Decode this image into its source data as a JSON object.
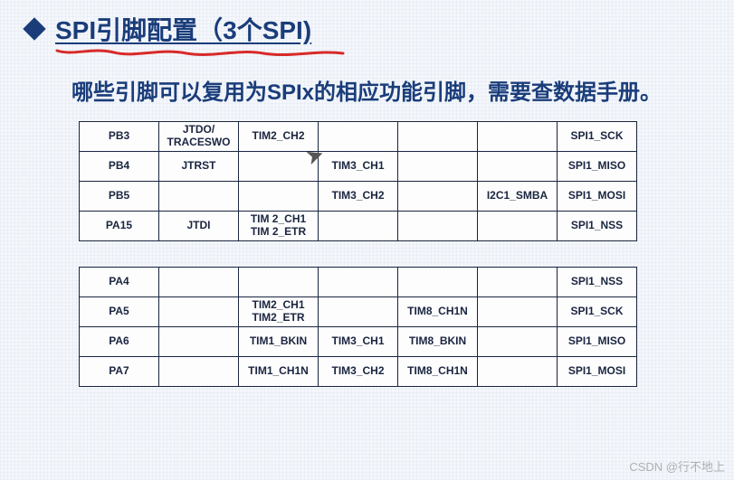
{
  "title": "SPI引脚配置（3个SPI)",
  "subtitle": "哪些引脚可以复用为SPIx的相应功能引脚，需要查数据手册。",
  "table1": {
    "rows": [
      [
        "PB3",
        "JTDO/\nTRACESWO",
        "TIM2_CH2",
        "",
        "",
        "",
        "SPI1_SCK"
      ],
      [
        "PB4",
        "JTRST",
        "",
        "TIM3_CH1",
        "",
        "",
        "SPI1_MISO"
      ],
      [
        "PB5",
        "",
        "",
        "TIM3_CH2",
        "",
        "I2C1_SMBA",
        "SPI1_MOSI"
      ],
      [
        "PA15",
        "JTDI",
        "TIM 2_CH1\nTIM 2_ETR",
        "",
        "",
        "",
        "SPI1_NSS"
      ]
    ]
  },
  "table2": {
    "rows": [
      [
        "PA4",
        "",
        "",
        "",
        "",
        "",
        "SPI1_NSS"
      ],
      [
        "PA5",
        "",
        "TIM2_CH1\nTIM2_ETR",
        "",
        "TIM8_CH1N",
        "",
        "SPI1_SCK"
      ],
      [
        "PA6",
        "",
        "TIM1_BKIN",
        "TIM3_CH1",
        "TIM8_BKIN",
        "",
        "SPI1_MISO"
      ],
      [
        "PA7",
        "",
        "TIM1_CH1N",
        "TIM3_CH2",
        "TIM8_CH1N",
        "",
        "SPI1_MOSI"
      ]
    ]
  },
  "watermark": "CSDN @行不地上",
  "colors": {
    "heading": "#1a3d7a",
    "border": "#1a2540",
    "hand_underline": "#d82a2a",
    "background": "#f5f7fb"
  }
}
